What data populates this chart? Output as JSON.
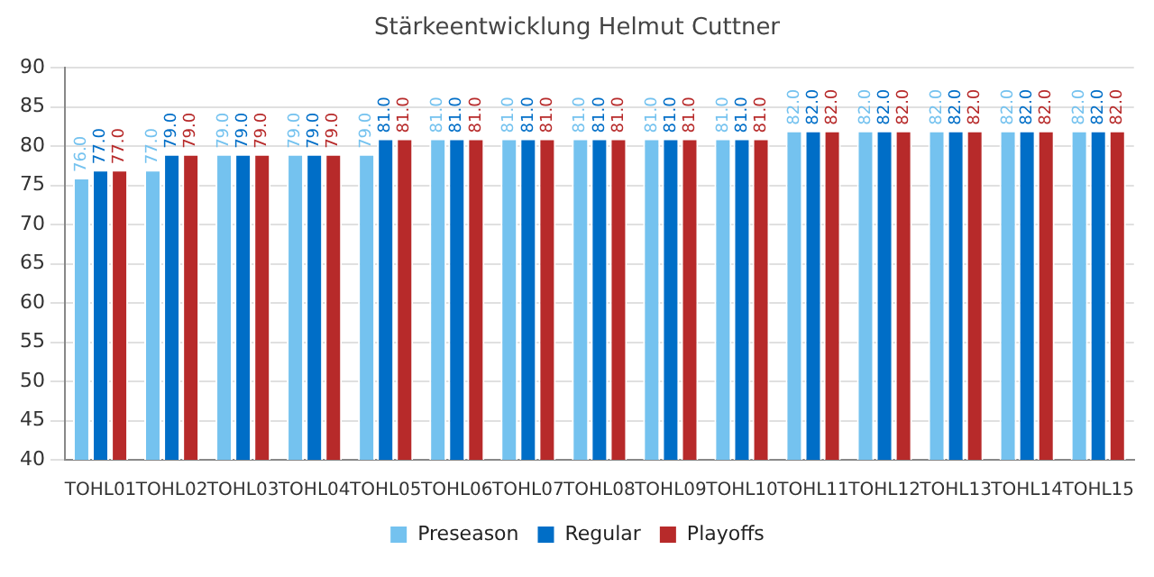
{
  "chart_data": {
    "type": "bar",
    "title": "Stärkeentwicklung Helmut Cuttner",
    "categories": [
      "TOHL01",
      "TOHL02",
      "TOHL03",
      "TOHL04",
      "TOHL05",
      "TOHL06",
      "TOHL07",
      "TOHL08",
      "TOHL09",
      "TOHL10",
      "TOHL11",
      "TOHL12",
      "TOHL13",
      "TOHL14",
      "TOHL15"
    ],
    "series": [
      {
        "name": "Preseason",
        "color": "#74c2ef",
        "values": [
          76,
          77,
          79,
          79,
          79,
          81,
          81,
          81,
          81,
          81,
          82,
          82,
          82,
          82,
          82
        ],
        "value_labels": [
          "76.0",
          "77.0",
          "79.0",
          "79.0",
          "79.0",
          "81.0",
          "81.0",
          "81.0",
          "81.0",
          "81.0",
          "82.0",
          "82.0",
          "82.0",
          "82.0",
          "82.0"
        ]
      },
      {
        "name": "Regular",
        "color": "#006ec7",
        "values": [
          77,
          79,
          79,
          79,
          81,
          81,
          81,
          81,
          81,
          81,
          82,
          82,
          82,
          82,
          82
        ],
        "value_labels": [
          "77.0",
          "79.0",
          "79.0",
          "79.0",
          "81.0",
          "81.0",
          "81.0",
          "81.0",
          "81.0",
          "81.0",
          "82.0",
          "82.0",
          "82.0",
          "82.0",
          "82.0"
        ]
      },
      {
        "name": "Playoffs",
        "color": "#b72a2a",
        "values": [
          77,
          79,
          79,
          79,
          81,
          81,
          81,
          81,
          81,
          81,
          82,
          82,
          82,
          82,
          82
        ],
        "value_labels": [
          "77.0",
          "79.0",
          "79.0",
          "79.0",
          "81.0",
          "81.0",
          "81.0",
          "81.0",
          "81.0",
          "81.0",
          "82.0",
          "82.0",
          "82.0",
          "82.0",
          "82.0"
        ]
      }
    ],
    "ylim": [
      40,
      90
    ],
    "yticks": [
      40,
      45,
      50,
      55,
      60,
      65,
      70,
      75,
      80,
      85,
      90
    ],
    "grid": "y",
    "legend": "bottom"
  }
}
